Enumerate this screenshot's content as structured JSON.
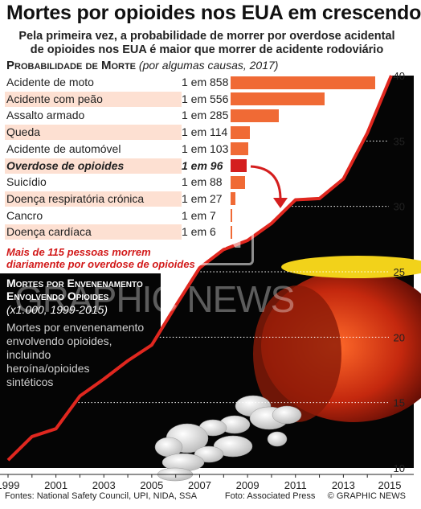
{
  "header": {
    "title": "Mortes por opioides nos EUA em crescendo",
    "subtitle_line1": "Pela primeira vez, a probabilidade de morrer por overdose acidental",
    "subtitle_line2": "de opioides nos EUA é maior que morrer de acidente rodoviário"
  },
  "prob_section": {
    "title_caps": "Probabilidade de Morte",
    "title_note": "(por algumas causas, 2017)"
  },
  "callout": {
    "line1": "Mais de 115 pessoas morrem",
    "line2": "diariamente por overdose de opioides"
  },
  "lower_section": {
    "title_line1": "Mortes por Envenenamento",
    "title_line2": "Envolvendo Opioides",
    "subtitle": "(x1.000, 1999-2015)",
    "legend_line1": "Mortes por envenenamento",
    "legend_line2": "envolvendo opioides,",
    "legend_line3": "incluindo",
    "legend_line4": "heroína/opioides",
    "legend_line5": "sintéticos"
  },
  "footer": {
    "sources": "Fontes: National Safety Council, UPI, NIDA, SSA",
    "photo_credit": "Foto: Associated Press",
    "brand": "© GRAPHIC NEWS"
  },
  "watermark": {
    "logo_text": "GN",
    "text": "GRAPHIC NEWS"
  },
  "colors": {
    "bar": "#f06a35",
    "bar_highlight": "#d41e1e",
    "row_shade": "#fde0d2",
    "dark_panel": "#050505",
    "line": "#e0271f",
    "arrow": "#d41e1e"
  },
  "chart_data": [
    {
      "type": "bar",
      "orientation": "horizontal",
      "title": "Probabilidade de Morte",
      "subtitle": "(por algumas causas, 2017)",
      "categories": [
        "Acidente de moto",
        "Acidente com peão",
        "Assalto armado",
        "Queda",
        "Acidente de automóvel",
        "Overdose de opioides",
        "Suicídio",
        "Doença respiratória crónica",
        "Cancro",
        "Doença cardíaca"
      ],
      "labels": [
        "1 em 858",
        "1 em 556",
        "1 em 285",
        "1 em 114",
        "1 em 103",
        "1 em 96",
        "1 em 88",
        "1 em 27",
        "1 em 7",
        "1 em 6"
      ],
      "values": [
        858,
        556,
        285,
        114,
        103,
        96,
        88,
        27,
        7,
        6
      ],
      "highlight": "Overdose de opioides",
      "shaded_rows": [
        1,
        3,
        5,
        7,
        9
      ]
    },
    {
      "type": "area",
      "title": "Mortes por Envenenamento Envolvendo Opioides",
      "subtitle": "(x1.000, 1999-2015)",
      "x": [
        1999,
        2000,
        2001,
        2002,
        2003,
        2004,
        2005,
        2006,
        2007,
        2008,
        2009,
        2010,
        2011,
        2012,
        2013,
        2014,
        2015
      ],
      "y": [
        10.6,
        12.4,
        13.0,
        15.5,
        16.8,
        18.2,
        19.4,
        22.4,
        25.3,
        26.7,
        27.4,
        28.7,
        30.5,
        30.6,
        32.1,
        35.6,
        40.0
      ],
      "xticks": [
        "1999",
        "2001",
        "2003",
        "2005",
        "2007",
        "2009",
        "2011",
        "2013",
        "2015"
      ],
      "yticks": [
        "10",
        "15",
        "20",
        "25",
        "30",
        "35",
        "40"
      ],
      "ylim": [
        10,
        40
      ],
      "xlim": [
        1999,
        2015
      ],
      "grid": "dotted"
    }
  ]
}
